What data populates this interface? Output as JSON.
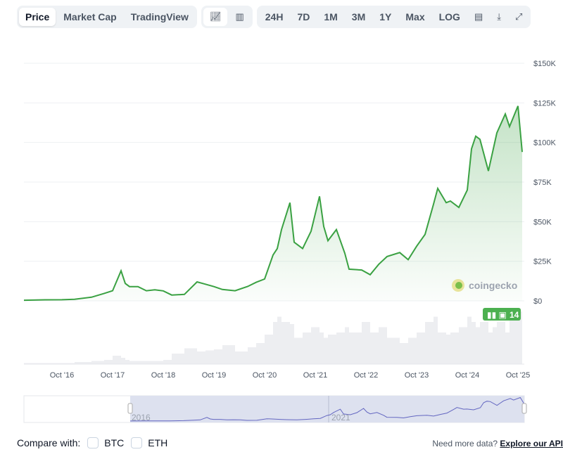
{
  "toolbar": {
    "tabs": [
      {
        "label": "Price",
        "active": true
      },
      {
        "label": "Market Cap"
      },
      {
        "label": "TradingView"
      }
    ],
    "chart_types": [
      {
        "icon": "line-chart-icon",
        "active": true
      },
      {
        "icon": "candlestick-chart-icon"
      }
    ],
    "ranges": [
      "24H",
      "7D",
      "1M",
      "3M",
      "1Y",
      "Max",
      "LOG"
    ],
    "tools": [
      "calendar-icon",
      "download-icon",
      "expand-icon"
    ]
  },
  "watermark": "coingecko",
  "event_badge": "14",
  "navigator": {
    "labels": [
      "2016",
      "2021"
    ]
  },
  "footer": {
    "compare_label": "Compare with:",
    "options": [
      "BTC",
      "ETH"
    ],
    "more_text": "Need more data?",
    "api_link": "Explore our API"
  },
  "colors": {
    "line": "#3aa142",
    "badge": "#4cb050",
    "navigator": "#6366c1",
    "volume": "#e5e7eb"
  },
  "chart_data": {
    "type": "line",
    "y_ticks": [
      "$0",
      "$25K",
      "$50K",
      "$75K",
      "$100K",
      "$125K",
      "$150K"
    ],
    "ylim": [
      0,
      150000
    ],
    "x_ticks": [
      "Oct '16",
      "Oct '17",
      "Oct '18",
      "Oct '19",
      "Oct '20",
      "Oct '21",
      "Oct '22",
      "Oct '23",
      "Oct '24",
      "Oct '25"
    ],
    "grid": true,
    "series": [
      {
        "x": [
          "2016-01",
          "2016-06",
          "2016-10",
          "2017-01",
          "2017-05",
          "2017-08",
          "2017-10",
          "2017-12",
          "2018-01",
          "2018-02",
          "2018-04",
          "2018-06",
          "2018-08",
          "2018-10",
          "2018-12",
          "2019-03",
          "2019-06",
          "2019-08",
          "2019-10",
          "2019-12",
          "2020-03",
          "2020-06",
          "2020-08",
          "2020-10",
          "2020-12",
          "2021-01",
          "2021-02",
          "2021-04",
          "2021-05",
          "2021-07",
          "2021-09",
          "2021-11",
          "2021-12",
          "2022-01",
          "2022-03",
          "2022-05",
          "2022-06",
          "2022-09",
          "2022-11",
          "2023-01",
          "2023-03",
          "2023-06",
          "2023-08",
          "2023-10",
          "2023-12",
          "2024-02",
          "2024-03",
          "2024-05",
          "2024-06",
          "2024-08",
          "2024-10",
          "2024-11",
          "2024-12",
          "2025-01",
          "2025-03",
          "2025-04",
          "2025-05",
          "2025-07",
          "2025-08",
          "2025-10",
          "2025-11"
        ],
        "y": [
          400,
          670,
          700,
          970,
          2300,
          4700,
          6400,
          19000,
          11000,
          9000,
          9000,
          6400,
          7000,
          6300,
          3700,
          4100,
          12000,
          10500,
          9000,
          7200,
          6400,
          9100,
          11700,
          13800,
          29000,
          33000,
          45000,
          62000,
          37000,
          33000,
          44000,
          66000,
          47000,
          38000,
          45000,
          30000,
          20000,
          19500,
          16500,
          23000,
          28000,
          30500,
          26000,
          34500,
          42000,
          61000,
          71000,
          62000,
          63000,
          59000,
          70000,
          96000,
          104000,
          102000,
          82000,
          94000,
          106000,
          118000,
          110000,
          123000,
          94000
        ]
      }
    ],
    "volume": [
      1,
      1,
      1,
      1,
      2,
      3,
      4,
      8,
      6,
      4,
      3,
      3,
      3,
      3,
      4,
      10,
      15,
      12,
      13,
      14,
      18,
      12,
      16,
      20,
      28,
      40,
      45,
      40,
      38,
      25,
      30,
      35,
      30,
      25,
      28,
      30,
      35,
      30,
      40,
      30,
      35,
      25,
      20,
      25,
      30,
      40,
      45,
      30,
      28,
      30,
      35,
      45,
      40,
      35,
      40,
      30,
      35,
      40,
      30,
      45,
      50
    ]
  }
}
